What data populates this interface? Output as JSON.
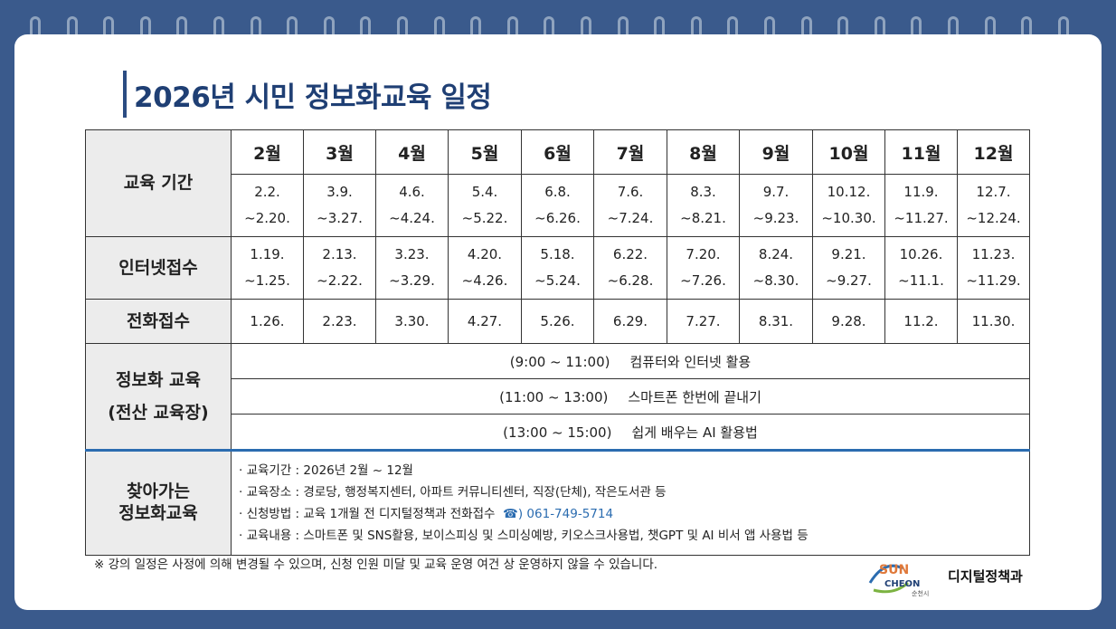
{
  "title": "2026년 시민 정보화교육 일정",
  "row_labels": {
    "period": "교육 기간",
    "internet": "인터넷접수",
    "phone": "전화접수",
    "education_line1": "정보화 교육",
    "education_line2": "(전산 교육장)",
    "visit_line1": "찾아가는",
    "visit_line2": "정보화교육"
  },
  "months": [
    "2월",
    "3월",
    "4월",
    "5월",
    "6월",
    "7월",
    "8월",
    "9월",
    "10월",
    "11월",
    "12월"
  ],
  "period": [
    {
      "start": "2.2.",
      "end": "~2.20."
    },
    {
      "start": "3.9.",
      "end": "~3.27."
    },
    {
      "start": "4.6.",
      "end": "~4.24."
    },
    {
      "start": "5.4.",
      "end": "~5.22."
    },
    {
      "start": "6.8.",
      "end": "~6.26."
    },
    {
      "start": "7.6.",
      "end": "~7.24."
    },
    {
      "start": "8.3.",
      "end": "~8.21."
    },
    {
      "start": "9.7.",
      "end": "~9.23."
    },
    {
      "start": "10.12.",
      "end": "~10.30."
    },
    {
      "start": "11.9.",
      "end": "~11.27."
    },
    {
      "start": "12.7.",
      "end": "~12.24."
    }
  ],
  "internet": [
    {
      "start": "1.19.",
      "end": "~1.25."
    },
    {
      "start": "2.13.",
      "end": "~2.22."
    },
    {
      "start": "3.23.",
      "end": "~3.29."
    },
    {
      "start": "4.20.",
      "end": "~4.26."
    },
    {
      "start": "5.18.",
      "end": "~5.24."
    },
    {
      "start": "6.22.",
      "end": "~6.28."
    },
    {
      "start": "7.20.",
      "end": "~7.26."
    },
    {
      "start": "8.24.",
      "end": "~8.30."
    },
    {
      "start": "9.21.",
      "end": "~9.27."
    },
    {
      "start": "10.26.",
      "end": "~11.1."
    },
    {
      "start": "11.23.",
      "end": "~11.29."
    }
  ],
  "phone": [
    "1.26.",
    "2.23.",
    "3.30.",
    "4.27.",
    "5.26.",
    "6.29.",
    "7.27.",
    "8.31.",
    "9.28.",
    "11.2.",
    "11.30."
  ],
  "education": [
    {
      "time": "(9:00 ~ 11:00)",
      "course": "컴퓨터와 인터넷 활용"
    },
    {
      "time": "(11:00 ~ 13:00)",
      "course": "스마트폰 한번에 끝내기"
    },
    {
      "time": "(13:00 ~ 15:00)",
      "course": "쉽게 배우는 AI 활용법"
    }
  ],
  "visit": {
    "lines": [
      "· 교육기간 : 2026년 2월 ~ 12월",
      "· 교육장소 : 경로당, 행정복지센터, 아파트 커뮤니티센터, 직장(단체), 작은도서관 등",
      "· 신청방법 : 교육 1개월 전 디지털정책과 전화접수",
      "· 교육내용 : 스마트폰 및 SNS활용, 보이스피싱 및 스미싱예방, 키오스크사용법, 챗GPT 및 AI 비서 앱 사용법 등"
    ],
    "phone_number": "☎) 061-749-5714"
  },
  "note": "※ 강의 일정은 사정에 의해 변경될 수 있으며, 신청 인원 미달 및 교육 운영 여건 상 운영하지 않을 수 있습니다.",
  "logo": {
    "text_top": "SUN",
    "text_bottom": "CHEON",
    "city": "순천시"
  },
  "department": "디지털정책과",
  "colors": {
    "background": "#3a5a8c",
    "accent": "#1f3f74",
    "line_blue": "#2b6cb0"
  }
}
